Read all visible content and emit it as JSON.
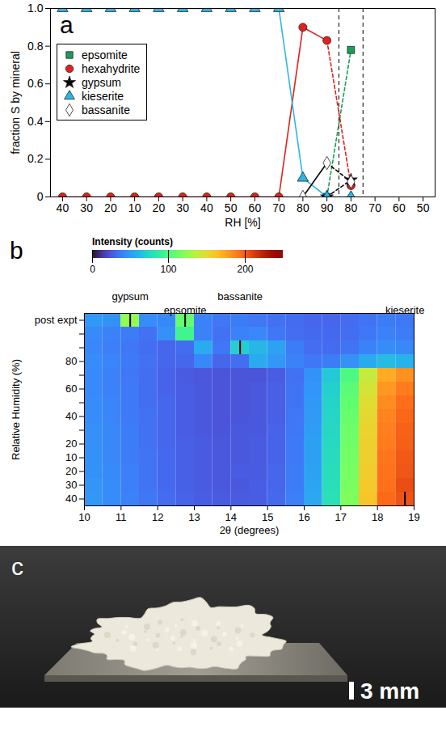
{
  "chart_data": [
    {
      "panel": "a",
      "type": "line",
      "x_label": "RH [%]",
      "y_label": "fraction S by mineral",
      "categories": [
        "40",
        "30",
        "20",
        "10",
        "20",
        "30",
        "40",
        "50",
        "60",
        "70",
        "80",
        "90",
        "80",
        "70",
        "60",
        "50"
      ],
      "ylim": [
        0,
        1
      ],
      "yticks": [
        0,
        0.2,
        0.4,
        0.6,
        0.8,
        {
          "value": 1,
          "label": "1.0"
        }
      ],
      "legend": "top-left",
      "series": [
        {
          "name": "epsomite",
          "color": "#1b9e5a",
          "marker": "square",
          "values": [
            null,
            null,
            null,
            null,
            null,
            null,
            null,
            null,
            null,
            null,
            null,
            0,
            0.78,
            null,
            null,
            null
          ]
        },
        {
          "name": "hexahydrite",
          "color": "#e3201b",
          "marker": "circle",
          "values": [
            0,
            0,
            0,
            0,
            0,
            0,
            0,
            0,
            0,
            0,
            0.9,
            0.83,
            0.06,
            null,
            null,
            null
          ]
        },
        {
          "name": "gypsum",
          "color": "#000000",
          "marker": "star",
          "values": [
            null,
            null,
            null,
            null,
            null,
            null,
            null,
            null,
            null,
            null,
            null,
            0,
            0.09,
            null,
            null,
            null
          ]
        },
        {
          "name": "kieserite",
          "color": "#2ab7e8",
          "marker": "triangle",
          "values": [
            1,
            1,
            1,
            1,
            1,
            1,
            1,
            1,
            1,
            1,
            0.1,
            0,
            0,
            null,
            null,
            null
          ]
        },
        {
          "name": "bassanite",
          "color": "#ffffff",
          "marker": "diamond",
          "values": [
            null,
            null,
            null,
            null,
            null,
            null,
            null,
            null,
            null,
            null,
            0,
            0.18,
            0.08,
            null,
            null,
            null
          ]
        }
      ]
    },
    {
      "panel": "b",
      "type": "heatmap",
      "x_label": "2θ (degrees)",
      "y_label": "Relative Humidity (%)",
      "categories": [
        "40",
        "30",
        "20",
        "10",
        "20",
        null,
        "40",
        null,
        "60",
        null,
        "80",
        null,
        null,
        "post expt"
      ],
      "x_bins": [
        10,
        10.5,
        11,
        11.5,
        12,
        12.5,
        13,
        13.5,
        14,
        14.5,
        15,
        15.5,
        16,
        16.5,
        17,
        17.5,
        18,
        18.5,
        19
      ],
      "xlim": [
        10,
        19
      ],
      "xticks": [
        10,
        11,
        12,
        13,
        14,
        15,
        16,
        17,
        18,
        19
      ],
      "cells": [
        [
          48,
          44,
          40,
          36,
          32,
          29,
          27,
          26,
          26,
          27,
          31,
          39,
          54,
          80,
          118,
          162,
          196,
          204
        ],
        [
          47,
          44,
          39,
          35,
          31,
          28,
          26,
          25,
          25,
          27,
          30,
          38,
          53,
          79,
          116,
          160,
          194,
          206
        ],
        [
          46,
          43,
          39,
          35,
          31,
          28,
          26,
          25,
          26,
          26,
          30,
          38,
          52,
          78,
          115,
          158,
          193,
          203
        ],
        [
          46,
          42,
          38,
          35,
          31,
          28,
          26,
          25,
          25,
          26,
          29,
          37,
          51,
          77,
          114,
          157,
          192,
          202
        ],
        [
          45,
          42,
          38,
          34,
          30,
          28,
          26,
          25,
          25,
          26,
          29,
          37,
          51,
          76,
          113,
          156,
          190,
          200
        ],
        [
          45,
          42,
          38,
          34,
          30,
          27,
          25,
          24,
          25,
          25,
          29,
          36,
          50,
          75,
          112,
          155,
          189,
          199
        ],
        [
          44,
          41,
          37,
          34,
          30,
          27,
          25,
          24,
          24,
          25,
          28,
          36,
          49,
          74,
          110,
          153,
          187,
          197
        ],
        [
          44,
          41,
          37,
          33,
          30,
          27,
          25,
          24,
          24,
          25,
          28,
          35,
          48,
          73,
          108,
          150,
          184,
          195
        ],
        [
          43,
          40,
          37,
          33,
          29,
          27,
          25,
          24,
          24,
          25,
          28,
          35,
          47,
          71,
          105,
          146,
          180,
          190
        ],
        [
          43,
          40,
          36,
          33,
          29,
          26,
          25,
          24,
          24,
          24,
          27,
          34,
          46,
          68,
          100,
          140,
          172,
          182
        ],
        [
          44,
          41,
          37,
          34,
          30,
          30,
          42,
          30,
          33,
          55,
          48,
          40,
          36,
          38,
          45,
          55,
          62,
          58
        ],
        [
          42,
          39,
          36,
          33,
          30,
          32,
          55,
          36,
          70,
          60,
          52,
          38,
          33,
          32,
          35,
          40,
          44,
          42
        ],
        [
          43,
          40,
          38,
          34,
          45,
          95,
          40,
          34,
          40,
          42,
          36,
          33,
          31,
          31,
          33,
          36,
          40,
          38
        ],
        [
          48,
          46,
          125,
          44,
          42,
          110,
          40,
          36,
          38,
          36,
          34,
          32,
          30,
          30,
          32,
          35,
          38,
          36
        ]
      ],
      "color_range": [
        0,
        250
      ],
      "color_ticks": [
        0,
        100,
        200
      ],
      "color_label": "Intensity (counts)",
      "annotations": [
        {
          "text": "gypsum",
          "x": 11.25,
          "row": 13
        },
        {
          "text": "epsomite",
          "x": 12.75,
          "row": 13
        },
        {
          "text": "bassanite",
          "x": 14.25,
          "row": 11
        },
        {
          "text": "kieserite",
          "x": 18.75,
          "row": 0
        }
      ]
    }
  ],
  "photo": {
    "label": "c",
    "scale_bar": "3 mm"
  }
}
